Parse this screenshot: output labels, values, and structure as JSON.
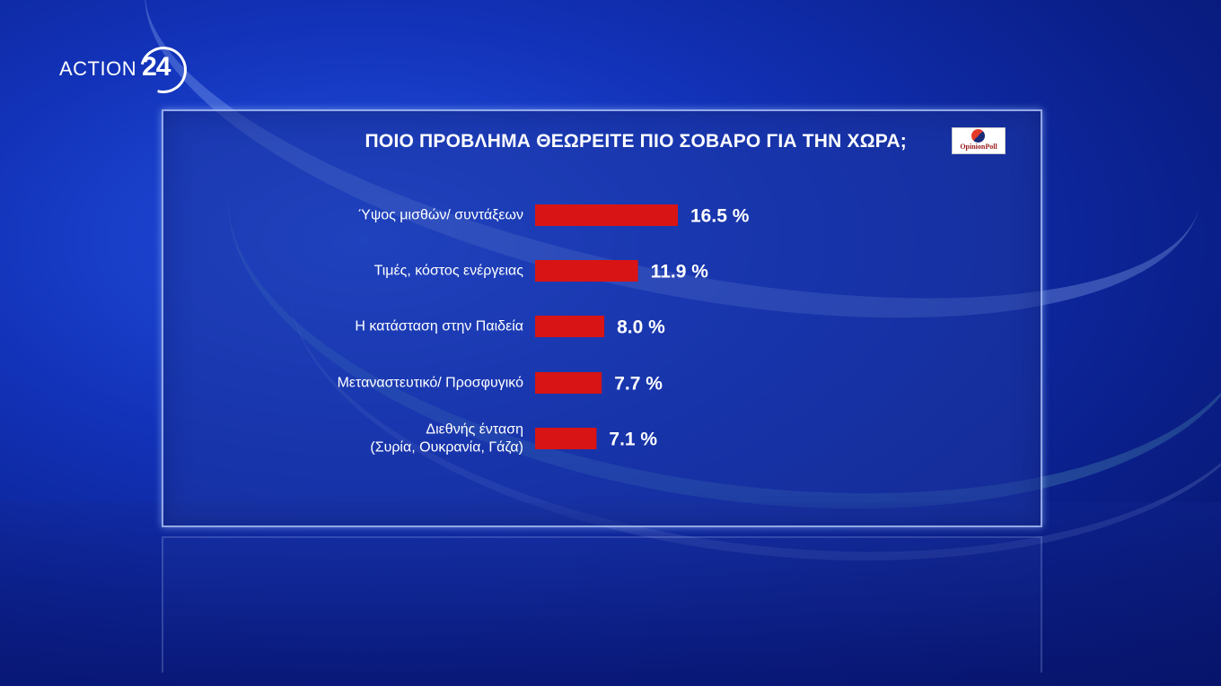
{
  "channel": {
    "logo_text": "ACTION",
    "logo_number": "24"
  },
  "pollster": {
    "logo_text": "OpinionPoll"
  },
  "colors": {
    "bar": "#d81414",
    "panel": "#1e37a0",
    "background": "#1232b8"
  },
  "chart_data": {
    "type": "bar",
    "orientation": "horizontal",
    "title": "ΠΟΙΟ ΠΡΟΒΛΗΜΑ ΘΕΩΡΕΙΤΕ ΠΙΟ ΣΟΒΑΡΟ ΓΙΑ ΤΗΝ ΧΩΡΑ;",
    "categories": [
      [
        "Ύψος μισθών/ συντάξεων"
      ],
      [
        "Τιμές, κόστος ενέργειας"
      ],
      [
        "Η κατάσταση στην Παιδεία"
      ],
      [
        "Μεταναστευτικό/ Προσφυγικό"
      ],
      [
        "Διεθνής ένταση",
        "(Συρία, Ουκρανία, Γάζα)"
      ]
    ],
    "values": [
      16.5,
      11.9,
      8.0,
      7.7,
      7.1
    ],
    "value_labels": [
      "16.5 %",
      "11.9 %",
      "8.0 %",
      "7.7 %",
      "7.1 %"
    ],
    "unit": "%",
    "grid": false,
    "legend": "none"
  }
}
